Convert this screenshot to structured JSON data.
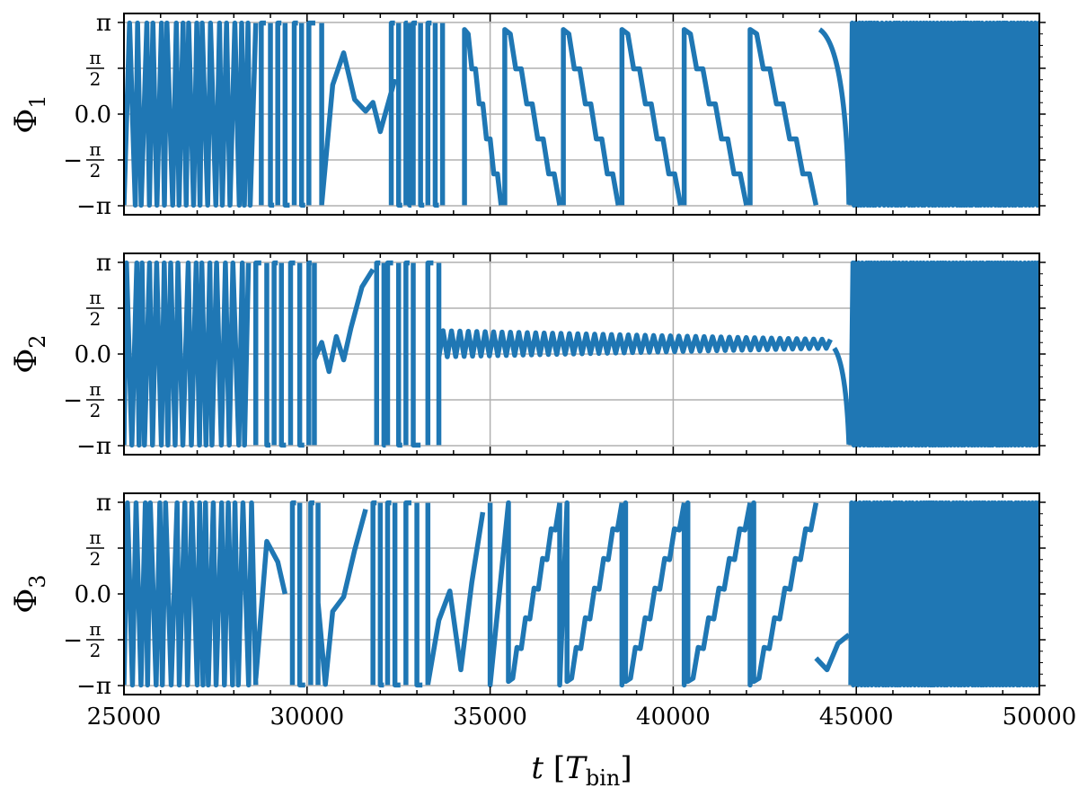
{
  "chart_data": {
    "type": "line",
    "xlim": [
      25000,
      50000
    ],
    "ylim": [
      -3.1416,
      3.1416
    ],
    "grid": true,
    "line_color": "#1f77b4",
    "x_ticks": [
      25000,
      30000,
      35000,
      40000,
      45000,
      50000
    ],
    "x_tick_labels": [
      "25000",
      "30000",
      "35000",
      "40000",
      "45000",
      "50000"
    ],
    "y_ticks": [
      3.1416,
      1.5708,
      0,
      -1.5708,
      -3.1416
    ],
    "y_tick_labels": [
      {
        "main": "π",
        "frac": false
      },
      {
        "num": "π",
        "den": "2",
        "sign": "",
        "frac": true
      },
      {
        "main": "0.0",
        "frac": false
      },
      {
        "num": "π",
        "den": "2",
        "sign": "−",
        "frac": true
      },
      {
        "main": "−π",
        "frac": false
      }
    ],
    "xlabel": {
      "var": "t",
      "open": "[",
      "sym": "T",
      "sub": "bin",
      "close": "]"
    },
    "panels": [
      {
        "ylabel_main": "Φ",
        "ylabel_sub": "1",
        "segments": [
          {
            "kind": "chaotic",
            "x0": 25000,
            "x1": 28600,
            "period": 110
          },
          {
            "kind": "wraps",
            "x": [
              28750,
              29000,
              29200,
              29400,
              29650,
              29850,
              30050,
              30400
            ]
          },
          {
            "kind": "points",
            "x": [
              30400,
              30700,
              31000,
              31300,
              31600,
              31800,
              32000,
              32200,
              32400
            ],
            "y": [
              -3.1,
              1.0,
              2.1,
              0.5,
              0.1,
              0.4,
              -0.6,
              0.3,
              1.2
            ]
          },
          {
            "kind": "wraps",
            "x": [
              32300,
              32500,
              32700,
              32800,
              32900,
              33100,
              33300,
              33500,
              33700
            ]
          },
          {
            "kind": "sawtooth",
            "starts": [
              34300,
              35400,
              37000,
              38600,
              40300,
              42100
            ],
            "ends": [
              35300,
              36900,
              38500,
              40200,
              42000,
              43900
            ],
            "ytop": 2.9,
            "ybottom": -3.1
          },
          {
            "kind": "drop",
            "x0": 44000,
            "x1": 44800,
            "y0": 2.9,
            "y1": -3.1
          },
          {
            "kind": "chaotic",
            "x0": 44850,
            "x1": 50000,
            "period": 45
          }
        ]
      },
      {
        "ylabel_main": "Φ",
        "ylabel_sub": "2",
        "segments": [
          {
            "kind": "chaotic",
            "x0": 25000,
            "x1": 28400,
            "period": 110
          },
          {
            "kind": "wraps",
            "x": [
              28600,
              28900,
              29100,
              29300,
              29550,
              29800,
              30050,
              30200
            ]
          },
          {
            "kind": "points",
            "x": [
              30200,
              30400,
              30600,
              30800,
              31000,
              31200,
              31500,
              31800
            ],
            "y": [
              -0.2,
              0.4,
              -0.6,
              0.6,
              -0.2,
              0.9,
              2.3,
              2.9
            ]
          },
          {
            "kind": "wraps",
            "x": [
              31900,
              32100,
              32200,
              32500,
              32700,
              32900,
              33300,
              33600
            ]
          },
          {
            "kind": "damped",
            "x0": 33600,
            "x1": 44400,
            "y_mean": 0.35,
            "amp_start": 0.9,
            "amp_end": 0.3,
            "period": 230
          },
          {
            "kind": "drop",
            "x0": 44400,
            "x1": 44800,
            "y0": 0.2,
            "y1": -3.1
          },
          {
            "kind": "chaotic",
            "x0": 44850,
            "x1": 50000,
            "period": 45
          }
        ]
      },
      {
        "ylabel_main": "Φ",
        "ylabel_sub": "3",
        "segments": [
          {
            "kind": "chaotic",
            "x0": 25000,
            "x1": 28600,
            "period": 110
          },
          {
            "kind": "points",
            "x": [
              28600,
              28900,
              29200,
              29400
            ],
            "y": [
              -2.9,
              1.8,
              1.1,
              0.0
            ]
          },
          {
            "kind": "wraps",
            "x": [
              29600,
              29800,
              30100,
              30300
            ]
          },
          {
            "kind": "points",
            "x": [
              30300,
              30500,
              30700,
              31000,
              31300,
              31600
            ],
            "y": [
              -0.3,
              -3.1,
              -0.6,
              -0.1,
              1.5,
              2.9
            ]
          },
          {
            "kind": "wraps",
            "x": [
              31800,
              32000,
              32200,
              32400,
              32700,
              33000,
              33300
            ]
          },
          {
            "kind": "points",
            "x": [
              33300,
              33600,
              33900,
              34200,
              34500,
              34800
            ],
            "y": [
              -3.1,
              -0.9,
              0.1,
              -2.6,
              0.4,
              2.8
            ]
          },
          {
            "kind": "sawtooth_up",
            "starts": [
              35000,
              36900,
              38600,
              40300,
              42100
            ],
            "ends": [
              35500,
              37100,
              38700,
              40400,
              42200
            ],
            "ytop": 3.1,
            "ybottom": -3.0
          },
          {
            "kind": "points",
            "x": [
              43900,
              44200,
              44500,
              44800
            ],
            "y": [
              -2.2,
              -2.6,
              -1.7,
              -1.4
            ]
          },
          {
            "kind": "chaotic",
            "x0": 44850,
            "x1": 50000,
            "period": 45
          }
        ]
      }
    ]
  }
}
